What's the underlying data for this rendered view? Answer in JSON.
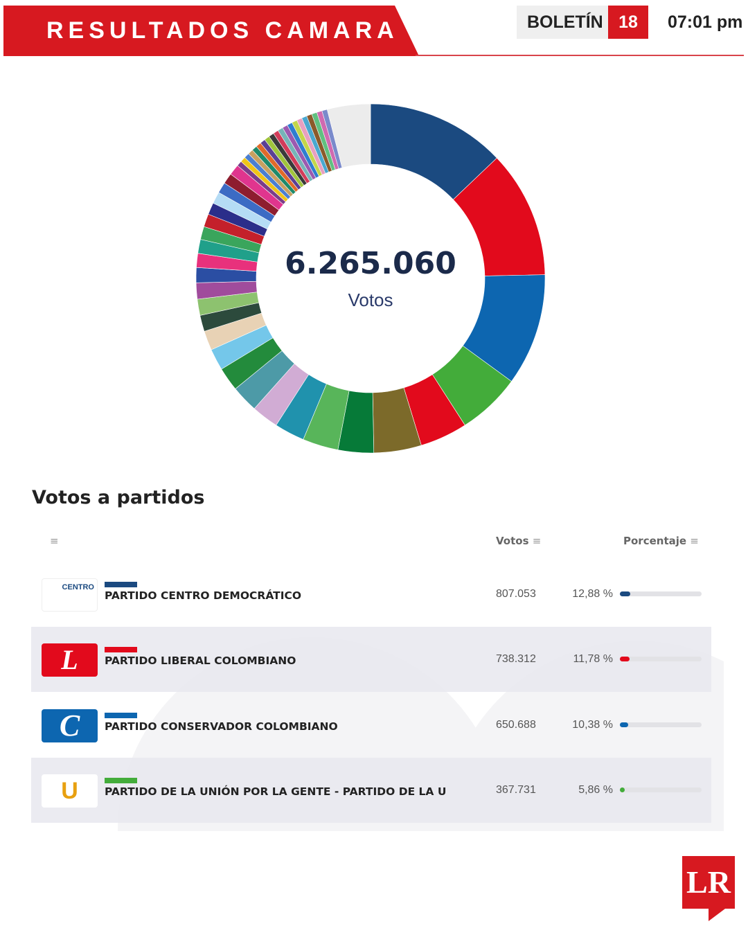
{
  "header": {
    "title": "RESULTADOS CAMARA",
    "bulletin_label": "BOLETÍN",
    "bulletin_number": "18",
    "time": "07:01 pm"
  },
  "summary": {
    "total": "6.265.060",
    "unit": "Votos"
  },
  "section_title": "Votos a partidos",
  "table": {
    "col_votes": "Votos",
    "col_percent": "Porcentaje",
    "menu_icon": "≡",
    "rows": [
      {
        "party": "PARTIDO CENTRO DEMOCRÁTICO",
        "votes": "807.053",
        "percent": "12,88 %",
        "pct": 12.88,
        "color": "#1b4a80",
        "logo_text": "CENTRO"
      },
      {
        "party": "PARTIDO LIBERAL COLOMBIANO",
        "votes": "738.312",
        "percent": "11,78 %",
        "pct": 11.78,
        "color": "#e20a1c",
        "logo_text": "L"
      },
      {
        "party": "PARTIDO CONSERVADOR COLOMBIANO",
        "votes": "650.688",
        "percent": "10,38 %",
        "pct": 10.38,
        "color": "#0d66b0",
        "logo_text": "C"
      },
      {
        "party": "PARTIDO DE LA UNIÓN POR LA GENTE - PARTIDO DE LA U",
        "votes": "367.731",
        "percent": "5,86 %",
        "pct": 5.86,
        "color": "#43ac3a",
        "logo_text": "U"
      }
    ]
  },
  "chart_data": {
    "type": "pie",
    "subtype": "donut",
    "total": "6.265.060",
    "values": [
      12.88,
      11.78,
      10.38,
      5.86,
      4.4,
      4.4,
      3.3,
      3.3,
      2.8,
      2.5,
      2.5,
      2.2,
      2.0,
      1.8,
      1.5,
      1.5,
      1.5,
      1.4,
      1.3,
      1.3,
      1.2,
      1.2,
      1.1,
      1.1,
      1.0,
      1.0,
      1.0,
      0.49,
      0.49,
      0.49,
      0.49,
      0.49,
      0.49,
      0.49,
      0.49,
      0.49,
      0.49,
      0.49,
      0.49,
      0.49,
      0.49,
      0.49,
      0.49,
      0.49,
      0.49,
      0.49,
      0.49,
      4.0
    ],
    "colors": [
      "#1b4a80",
      "#e20a1c",
      "#0d66b0",
      "#43ac3a",
      "#e20a1c",
      "#7c6a2a",
      "#067a38",
      "#58b55a",
      "#2092ad",
      "#d1acd4",
      "#4d9aa7",
      "#238b3c",
      "#74c7ea",
      "#e8d2b5",
      "#2c4a3c",
      "#8dc26f",
      "#a04c9c",
      "#2b4ea3",
      "#e8317c",
      "#20a08a",
      "#3aa55c",
      "#c4202b",
      "#2b2e8a",
      "#b5dcf5",
      "#3c6bc4",
      "#8e1d2f",
      "#e0358e",
      "#7a3d8a",
      "#f0c419",
      "#4b7fd0",
      "#c8a061",
      "#1e8a6a",
      "#e06a2a",
      "#5b3f95",
      "#a0c43c",
      "#3a3a3a",
      "#d23c5a",
      "#76b4b8",
      "#9c5ab0",
      "#2f7dd0",
      "#c3d64a",
      "#e8a0c0",
      "#4aa8d0",
      "#8b5a2b",
      "#60c080",
      "#d06ab0",
      "#7a8acb",
      "#ececec"
    ]
  }
}
